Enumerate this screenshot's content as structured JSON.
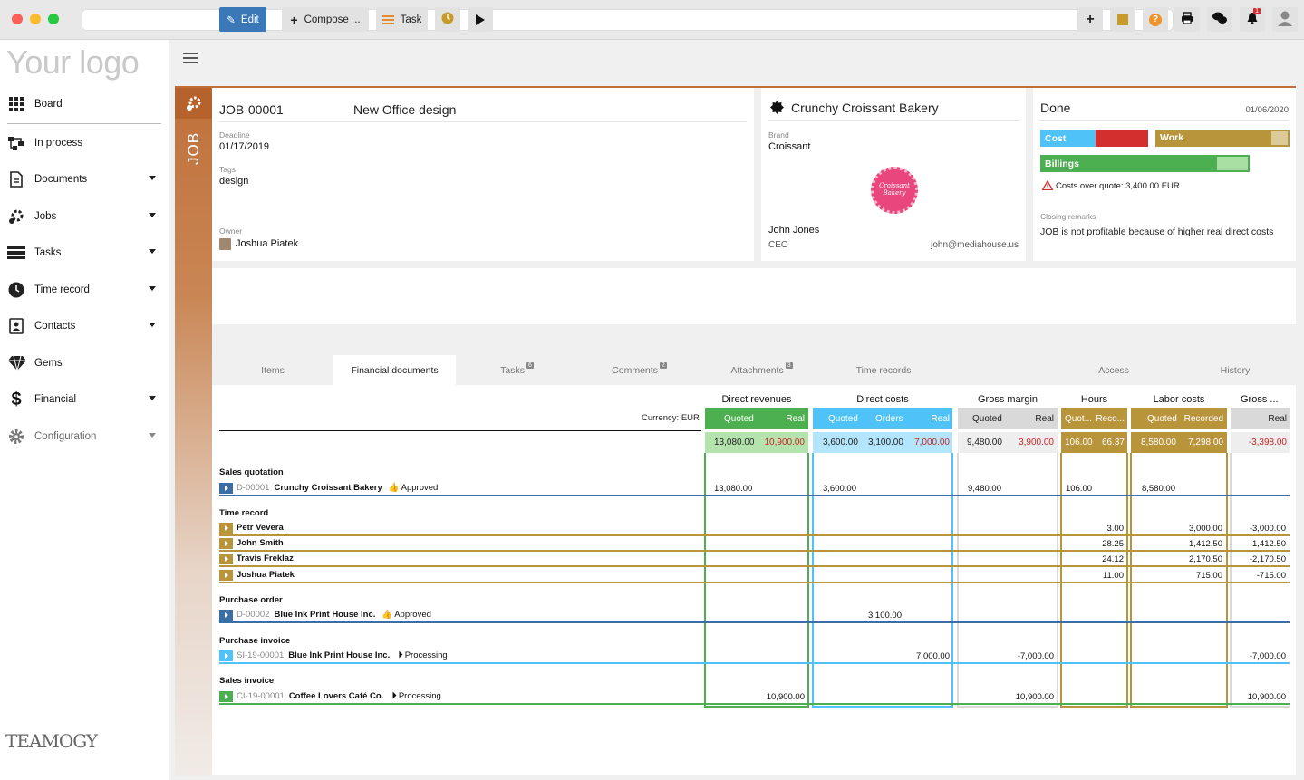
{
  "logo": "Your logo",
  "brand_footer": "TEAMOGY",
  "nav": [
    {
      "label": "Board",
      "icon": "grid-icon",
      "caret": false
    },
    {
      "label": "In process",
      "icon": "process-icon",
      "caret": false
    },
    {
      "label": "Documents",
      "icon": "document-icon",
      "caret": true
    },
    {
      "label": "Jobs",
      "icon": "jobs-icon",
      "caret": true
    },
    {
      "label": "Tasks",
      "icon": "tasks-icon",
      "caret": true
    },
    {
      "label": "Time record",
      "icon": "clock-icon",
      "caret": true
    },
    {
      "label": "Contacts",
      "icon": "contacts-icon",
      "caret": true
    },
    {
      "label": "Gems",
      "icon": "gem-icon",
      "caret": false
    },
    {
      "label": "Financial",
      "icon": "dollar-icon",
      "caret": true
    },
    {
      "label": "Configuration",
      "icon": "gear-icon",
      "caret": true
    }
  ],
  "toolbar": {
    "edit": "Edit",
    "compose": "Compose ...",
    "task": "Task",
    "notification_count": "1"
  },
  "job": {
    "side_label": "JOB",
    "number": "JOB-00001",
    "title": "New Office design",
    "deadline_label": "Deadline",
    "deadline": "01/17/2019",
    "tags_label": "Tags",
    "tags": "design",
    "owner_label": "Owner",
    "owner": "Joshua Piatek"
  },
  "client": {
    "name": "Crunchy Croissant Bakery",
    "brand_label": "Brand",
    "brand": "Croissant",
    "logo_text": "Croissant Bakery",
    "contact_name": "John Jones",
    "contact_role": "CEO",
    "contact_email": "john@mediahouse.us"
  },
  "status": {
    "state": "Done",
    "date": "01/06/2020",
    "cost_label": "Cost",
    "work_label": "Work",
    "billings_label": "Billings",
    "warning": "Costs over quote: 3,400.00 EUR",
    "remarks_label": "Closing remarks",
    "remarks": "JOB is not profitable because of higher real direct costs"
  },
  "tabs": [
    {
      "label": "Items",
      "badge": ""
    },
    {
      "label": "Financial documents",
      "badge": ""
    },
    {
      "label": "Tasks",
      "badge": "6"
    },
    {
      "label": "Comments",
      "badge": "2"
    },
    {
      "label": "Attachments",
      "badge": "3"
    },
    {
      "label": "Time records",
      "badge": ""
    },
    {
      "label": "Access",
      "badge": ""
    },
    {
      "label": "History",
      "badge": ""
    }
  ],
  "table": {
    "currency": "Currency: EUR",
    "groups": {
      "direct_revenues": "Direct revenues",
      "direct_costs": "Direct costs",
      "gross_margin": "Gross margin",
      "hours": "Hours",
      "labor_costs": "Labor costs",
      "gross_truncated": "Gross ..."
    },
    "sub": {
      "rev_quoted": "Quoted",
      "rev_real": "Real",
      "dc_quoted": "Quoted",
      "dc_orders": "Orders",
      "dc_real": "Real",
      "gm_quoted": "Quoted",
      "gm_real": "Real",
      "h_quoted": "Quot...",
      "h_recorded": "Reco...",
      "lc_quoted": "Quoted",
      "lc_recorded": "Recorded",
      "g_real": "Real"
    },
    "totals": {
      "rev_quoted": "13,080.00",
      "rev_real": "10,900.00",
      "dc_quoted": "3,600.00",
      "dc_orders": "3,100.00",
      "dc_real": "7,000.00",
      "gm_quoted": "9,480.00",
      "gm_real": "3,900.00",
      "h_quoted": "106.00",
      "h_recorded": "66.37",
      "lc_quoted": "8,580.00",
      "lc_recorded": "7,298.00",
      "g_real": "-3,398.00"
    },
    "sections": {
      "sales_quotation": "Sales quotation",
      "time_record": "Time record",
      "purchase_order": "Purchase order",
      "purchase_invoice": "Purchase invoice",
      "sales_invoice": "Sales invoice"
    },
    "rows": {
      "sq": {
        "code": "D-00001",
        "name": "Crunchy Croissant Bakery",
        "status": "Approved",
        "rev_quoted": "13,080.00",
        "dc_quoted": "3,600.00",
        "gm_quoted": "9,480.00",
        "h_quoted": "106.00",
        "lc_quoted": "8,580.00"
      },
      "tr": [
        {
          "name": "Petr Vevera",
          "hours": "3.00",
          "labor": "3,000.00",
          "gross": "-3,000.00"
        },
        {
          "name": "John Smith",
          "hours": "28.25",
          "labor": "1,412.50",
          "gross": "-1,412.50"
        },
        {
          "name": "Travis Freklaz",
          "hours": "24.12",
          "labor": "2,170.50",
          "gross": "-2,170.50"
        },
        {
          "name": "Joshua Piatek",
          "hours": "11.00",
          "labor": "715.00",
          "gross": "-715.00"
        }
      ],
      "po": {
        "code": "D-00002",
        "name": "Blue Ink Print House Inc.",
        "status": "Approved",
        "dc_orders": "3,100.00"
      },
      "pi": {
        "code": "SI-19-00001",
        "name": "Blue Ink Print House Inc.",
        "status": "Processing",
        "dc_real": "7,000.00",
        "gm_real": "-7,000.00",
        "g_real": "-7,000.00"
      },
      "si": {
        "code": "CI-19-00001",
        "name": "Coffee Lovers Café Co.",
        "status": "Processing",
        "rev_real": "10,900.00",
        "gm_real": "10,900.00",
        "g_real": "10,900.00"
      }
    }
  },
  "colors": {
    "green": "#4caf50",
    "blue": "#4fc3f7",
    "gold": "#b8943a",
    "gray": "#d9d9d9",
    "red": "#c62828",
    "orange": "#c0703a"
  }
}
